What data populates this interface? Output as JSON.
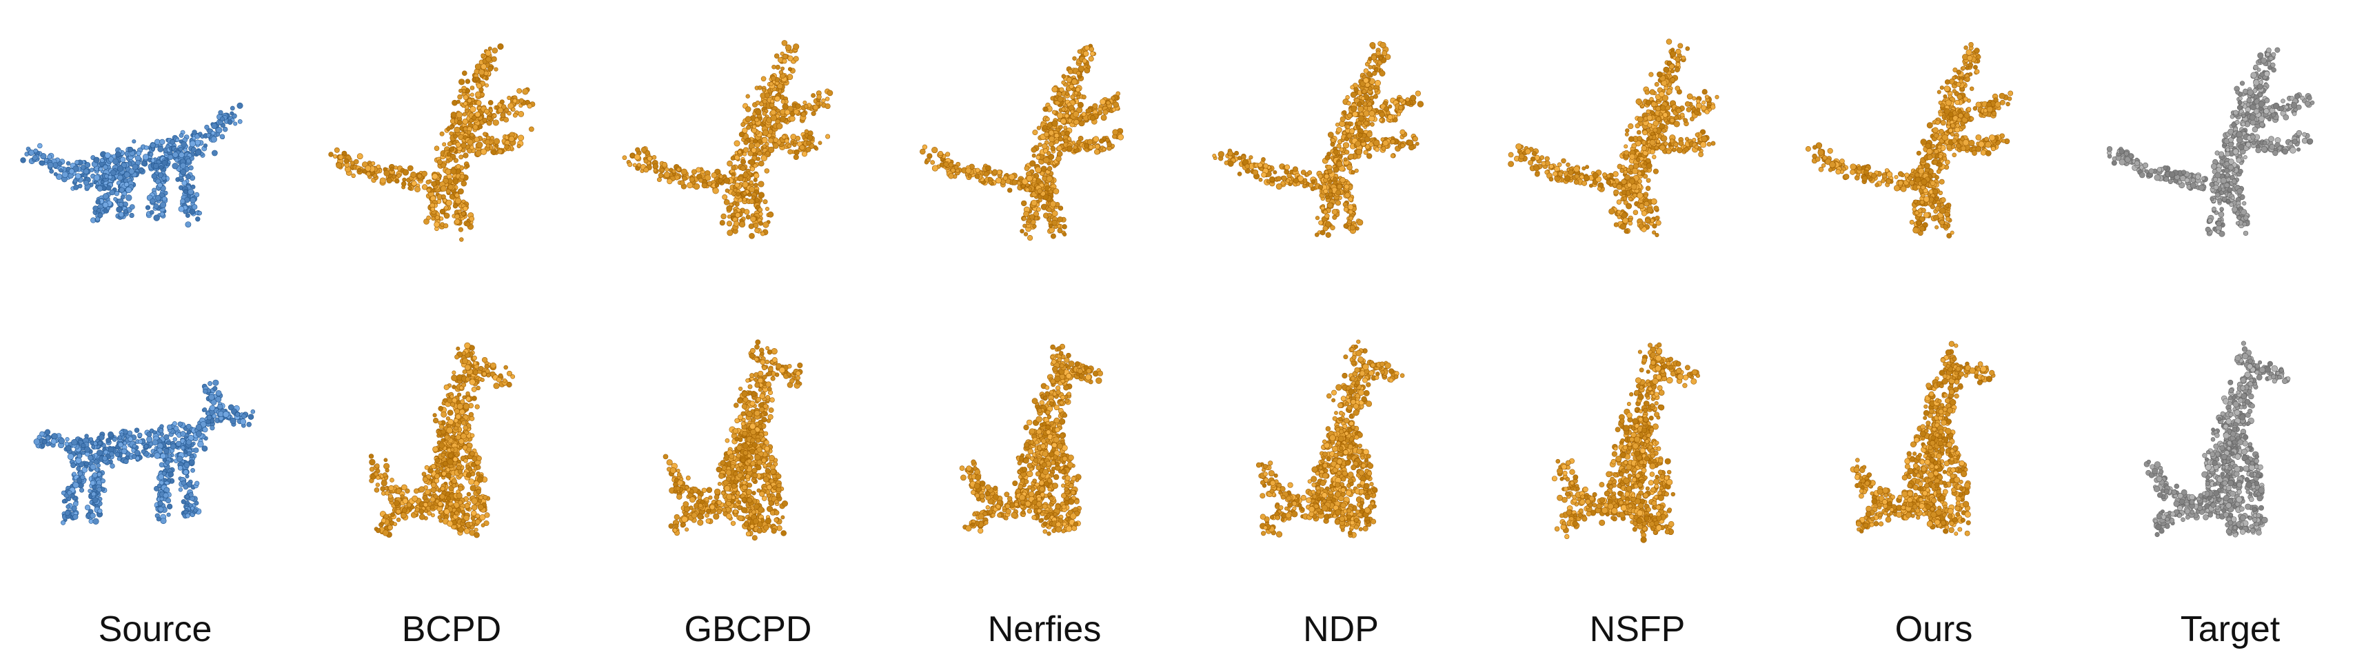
{
  "columns": [
    {
      "label": "Source",
      "style": "source"
    },
    {
      "label": "BCPD",
      "style": "result"
    },
    {
      "label": "GBCPD",
      "style": "result"
    },
    {
      "label": "Nerfies",
      "style": "result"
    },
    {
      "label": "NDP",
      "style": "result"
    },
    {
      "label": "NSFP",
      "style": "result"
    },
    {
      "label": "Ours",
      "style": "result"
    },
    {
      "label": "Target",
      "style": "target"
    }
  ],
  "rows": [
    {
      "subject": "cat",
      "cells": [
        "standing",
        "leaping",
        "leaping",
        "leaping",
        "leaping",
        "leaping",
        "leaping",
        "leaping"
      ]
    },
    {
      "subject": "dog",
      "cells": [
        "standing",
        "sitting",
        "sitting",
        "sitting",
        "sitting",
        "sitting",
        "sitting",
        "sitting"
      ]
    }
  ],
  "colors": {
    "source": "#5b8fc9",
    "result": "#d8962a",
    "target": "#9a9a9a"
  },
  "icons": {
    "cell": "point-cloud-icon"
  }
}
